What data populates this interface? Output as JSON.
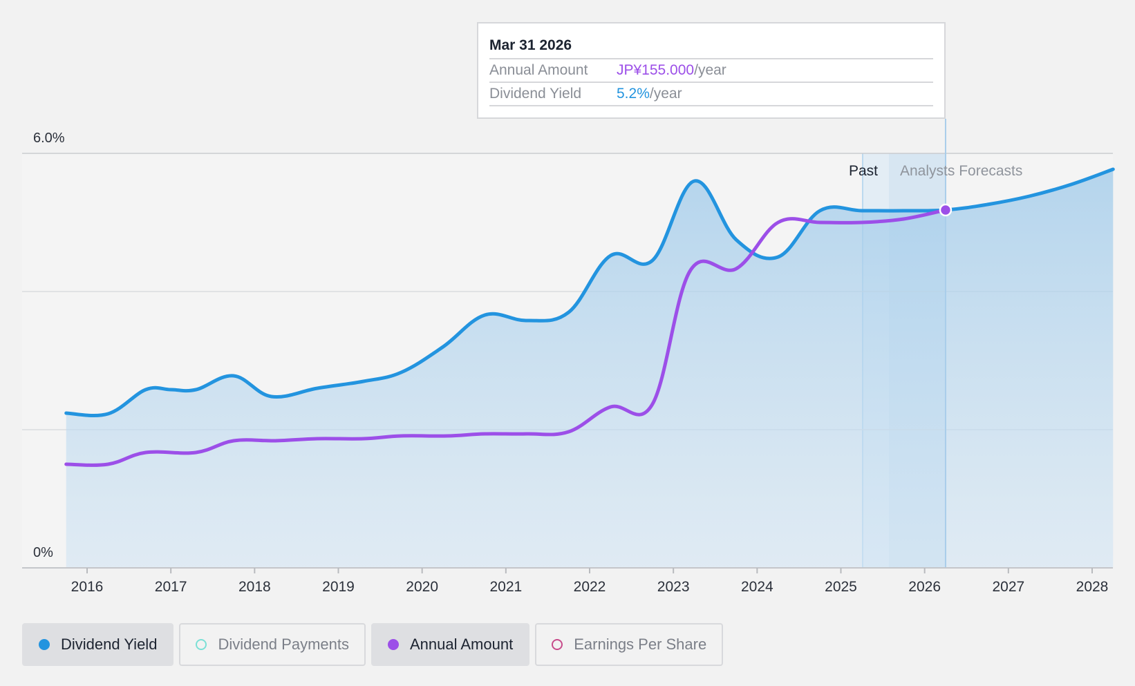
{
  "chart_data": {
    "type": "line",
    "x_ticks": [
      "2016",
      "2017",
      "2018",
      "2019",
      "2020",
      "2021",
      "2022",
      "2023",
      "2024",
      "2025",
      "2026",
      "2027",
      "2028"
    ],
    "y_ticks": [
      "0%",
      "6.0%"
    ],
    "ylim": [
      0,
      6.0
    ],
    "grid": true,
    "regions": {
      "past_label": "Past",
      "forecast_label": "Analysts Forecasts"
    },
    "series": [
      {
        "name": "Dividend Yield",
        "color": "#2394df",
        "unit": "%",
        "area": true,
        "points": [
          [
            2015.75,
            2.24
          ],
          [
            2016.25,
            2.23
          ],
          [
            2016.7,
            2.58
          ],
          [
            2017.0,
            2.58
          ],
          [
            2017.3,
            2.58
          ],
          [
            2017.75,
            2.78
          ],
          [
            2018.2,
            2.48
          ],
          [
            2018.75,
            2.6
          ],
          [
            2019.3,
            2.7
          ],
          [
            2019.75,
            2.83
          ],
          [
            2020.25,
            3.2
          ],
          [
            2020.75,
            3.66
          ],
          [
            2021.25,
            3.58
          ],
          [
            2021.75,
            3.7
          ],
          [
            2022.25,
            4.52
          ],
          [
            2022.75,
            4.45
          ],
          [
            2023.25,
            5.6
          ],
          [
            2023.75,
            4.75
          ],
          [
            2024.25,
            4.5
          ],
          [
            2024.75,
            5.17
          ],
          [
            2025.25,
            5.17
          ],
          [
            2025.75,
            5.17
          ],
          [
            2026.25,
            5.18
          ],
          [
            2026.75,
            5.26
          ],
          [
            2027.25,
            5.38
          ],
          [
            2027.75,
            5.55
          ],
          [
            2028.25,
            5.77
          ]
        ]
      },
      {
        "name": "Annual Amount",
        "color": "#9c4fe8",
        "unit": "JP¥",
        "points": [
          [
            2015.75,
            1.5
          ],
          [
            2016.25,
            1.5
          ],
          [
            2016.7,
            1.67
          ],
          [
            2017.3,
            1.67
          ],
          [
            2017.75,
            1.84
          ],
          [
            2018.25,
            1.84
          ],
          [
            2018.75,
            1.87
          ],
          [
            2019.3,
            1.87
          ],
          [
            2019.75,
            1.91
          ],
          [
            2020.3,
            1.91
          ],
          [
            2020.75,
            1.94
          ],
          [
            2021.25,
            1.94
          ],
          [
            2021.75,
            1.97
          ],
          [
            2022.25,
            2.33
          ],
          [
            2022.75,
            2.37
          ],
          [
            2023.2,
            4.3
          ],
          [
            2023.75,
            4.33
          ],
          [
            2024.25,
            5.0
          ],
          [
            2024.75,
            5.0
          ],
          [
            2025.25,
            5.0
          ],
          [
            2025.75,
            5.05
          ],
          [
            2026.25,
            5.18
          ]
        ]
      }
    ],
    "highlight_x": 2026.25
  },
  "tooltip": {
    "date": "Mar 31 2026",
    "rows": [
      {
        "label": "Annual Amount",
        "value": "JP¥155.000",
        "unit": "/year",
        "color": "#9c4fe8"
      },
      {
        "label": "Dividend Yield",
        "value": "5.2%",
        "unit": "/year",
        "color": "#2394df"
      }
    ]
  },
  "legend": [
    {
      "label": "Dividend Yield",
      "color": "#2394df",
      "state": "active",
      "marker": "filled"
    },
    {
      "label": "Dividend Payments",
      "color": "#7be0d6",
      "state": "inactive",
      "marker": "hollow"
    },
    {
      "label": "Annual Amount",
      "color": "#9c4fe8",
      "state": "active",
      "marker": "filled"
    },
    {
      "label": "Earnings Per Share",
      "color": "#c74b8a",
      "state": "inactive",
      "marker": "hollow"
    }
  ]
}
